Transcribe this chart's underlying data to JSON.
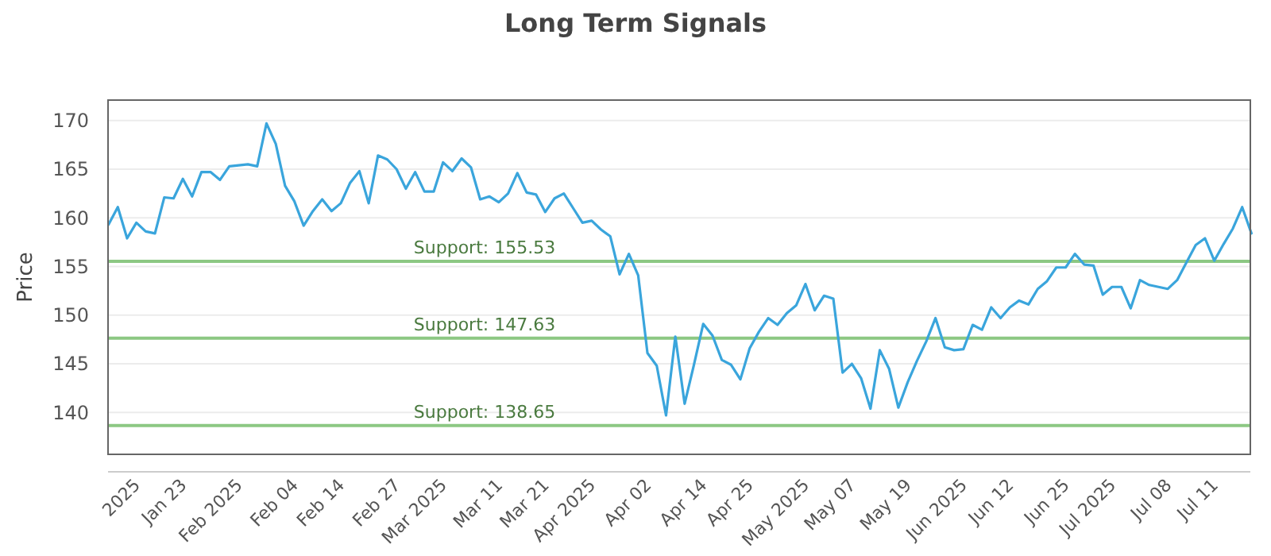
{
  "chart_data": {
    "type": "line",
    "title": "Long Term Signals",
    "ylabel": "Price",
    "categories": [
      null,
      null,
      null,
      "2025",
      null,
      null,
      null,
      null,
      "Jan 23",
      null,
      null,
      null,
      null,
      null,
      "Feb 2025",
      null,
      null,
      null,
      null,
      null,
      "Feb 04",
      null,
      null,
      null,
      null,
      "Feb 14",
      null,
      null,
      null,
      null,
      null,
      "Feb 27",
      null,
      null,
      null,
      null,
      "Mar 2025",
      null,
      null,
      null,
      null,
      null,
      "Mar 11",
      null,
      null,
      null,
      null,
      "Mar 21",
      null,
      null,
      null,
      null,
      "Apr 2025",
      null,
      null,
      null,
      null,
      null,
      "Apr 02",
      null,
      null,
      null,
      null,
      null,
      "Apr 14",
      null,
      null,
      null,
      null,
      "Apr 25",
      null,
      null,
      null,
      null,
      null,
      "May 2025",
      null,
      null,
      null,
      null,
      "May 07",
      null,
      null,
      null,
      null,
      null,
      "May 19",
      null,
      null,
      null,
      null,
      null,
      "Jun 2025",
      null,
      null,
      null,
      null,
      "Jun 12",
      null,
      null,
      null,
      null,
      null,
      "Jun 25",
      null,
      null,
      null,
      null,
      "Jul 2025",
      null,
      null,
      null,
      null,
      null,
      "Jul 08",
      null,
      null,
      null,
      null,
      "Jul 11",
      null,
      null,
      null,
      null
    ],
    "series": [
      {
        "color": "#3aa5dc",
        "values": [
          159.3,
          161.1,
          157.9,
          159.5,
          158.6,
          158.4,
          162.1,
          162.0,
          164.0,
          162.2,
          164.7,
          164.7,
          163.9,
          165.3,
          165.4,
          165.5,
          165.3,
          169.7,
          167.6,
          163.3,
          161.7,
          159.2,
          160.7,
          161.9,
          160.7,
          161.5,
          163.6,
          164.8,
          161.5,
          166.4,
          166.0,
          165.0,
          163.0,
          164.7,
          162.7,
          162.7,
          165.7,
          164.8,
          166.1,
          165.2,
          161.9,
          162.2,
          161.6,
          162.5,
          164.6,
          162.6,
          162.4,
          160.6,
          162.0,
          162.5,
          161.0,
          159.5,
          159.7,
          158.8,
          158.1,
          154.2,
          156.3,
          154.1,
          146.1,
          144.8,
          139.7,
          147.8,
          140.9,
          144.9,
          149.1,
          147.9,
          145.4,
          144.9,
          143.4,
          146.6,
          148.3,
          149.7,
          149.0,
          150.2,
          151.0,
          153.2,
          150.5,
          152.0,
          151.7,
          144.1,
          145.0,
          143.5,
          140.4,
          146.4,
          144.5,
          140.5,
          143.1,
          145.3,
          147.3,
          149.7,
          146.7,
          146.4,
          146.5,
          149.0,
          148.5,
          150.8,
          149.7,
          150.8,
          151.5,
          151.1,
          152.7,
          153.5,
          154.9,
          154.9,
          156.3,
          155.2,
          155.1,
          152.1,
          152.9,
          152.9,
          150.7,
          153.6,
          153.1,
          152.9,
          152.7,
          153.6,
          155.4,
          157.2,
          157.9,
          155.6,
          157.3,
          158.9,
          161.1,
          158.4
        ]
      }
    ],
    "ylim": [
      135.7,
      172.1
    ],
    "yticks": [
      140,
      145,
      150,
      155,
      160,
      165,
      170
    ],
    "grid": "y",
    "ref_lines": [
      {
        "axis": "y",
        "value": 155.53,
        "label": "Support: 155.53",
        "color": "#8cc883"
      },
      {
        "axis": "y",
        "value": 147.63,
        "label": "Support: 147.63",
        "color": "#8cc883"
      },
      {
        "axis": "y",
        "value": 138.65,
        "label": "Support: 138.65",
        "color": "#8cc883"
      }
    ]
  }
}
